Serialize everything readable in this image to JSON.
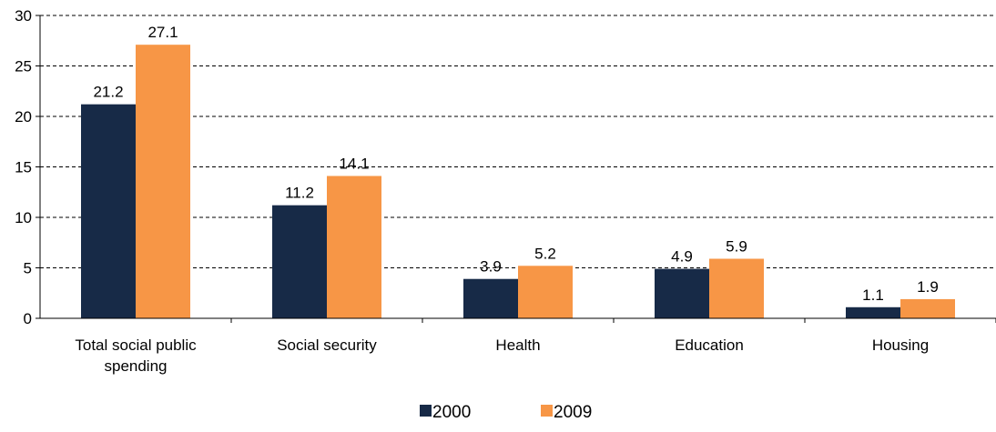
{
  "chart_data": {
    "type": "bar",
    "categories": [
      [
        "Total social public",
        "spending"
      ],
      [
        "Social security"
      ],
      [
        "Health"
      ],
      [
        "Education"
      ],
      [
        "Housing"
      ]
    ],
    "series": [
      {
        "name": "2000",
        "color": "#172a47",
        "values": [
          21.2,
          11.2,
          3.9,
          4.9,
          1.1
        ]
      },
      {
        "name": "2009",
        "color": "#f79646",
        "values": [
          27.1,
          14.1,
          5.2,
          5.9,
          1.9
        ]
      }
    ],
    "data_labels": [
      [
        "21.2",
        "11.2",
        "3.9",
        "4.9",
        "1.1"
      ],
      [
        "27.1",
        "14.1",
        "5.2",
        "5.9",
        "1.9"
      ]
    ],
    "ylim": [
      0,
      30
    ],
    "yticks": [
      0,
      5,
      10,
      15,
      20,
      25,
      30
    ],
    "grid": "horizontal dashed",
    "legend_position": "bottom-center",
    "title": "",
    "xlabel": "",
    "ylabel": ""
  }
}
